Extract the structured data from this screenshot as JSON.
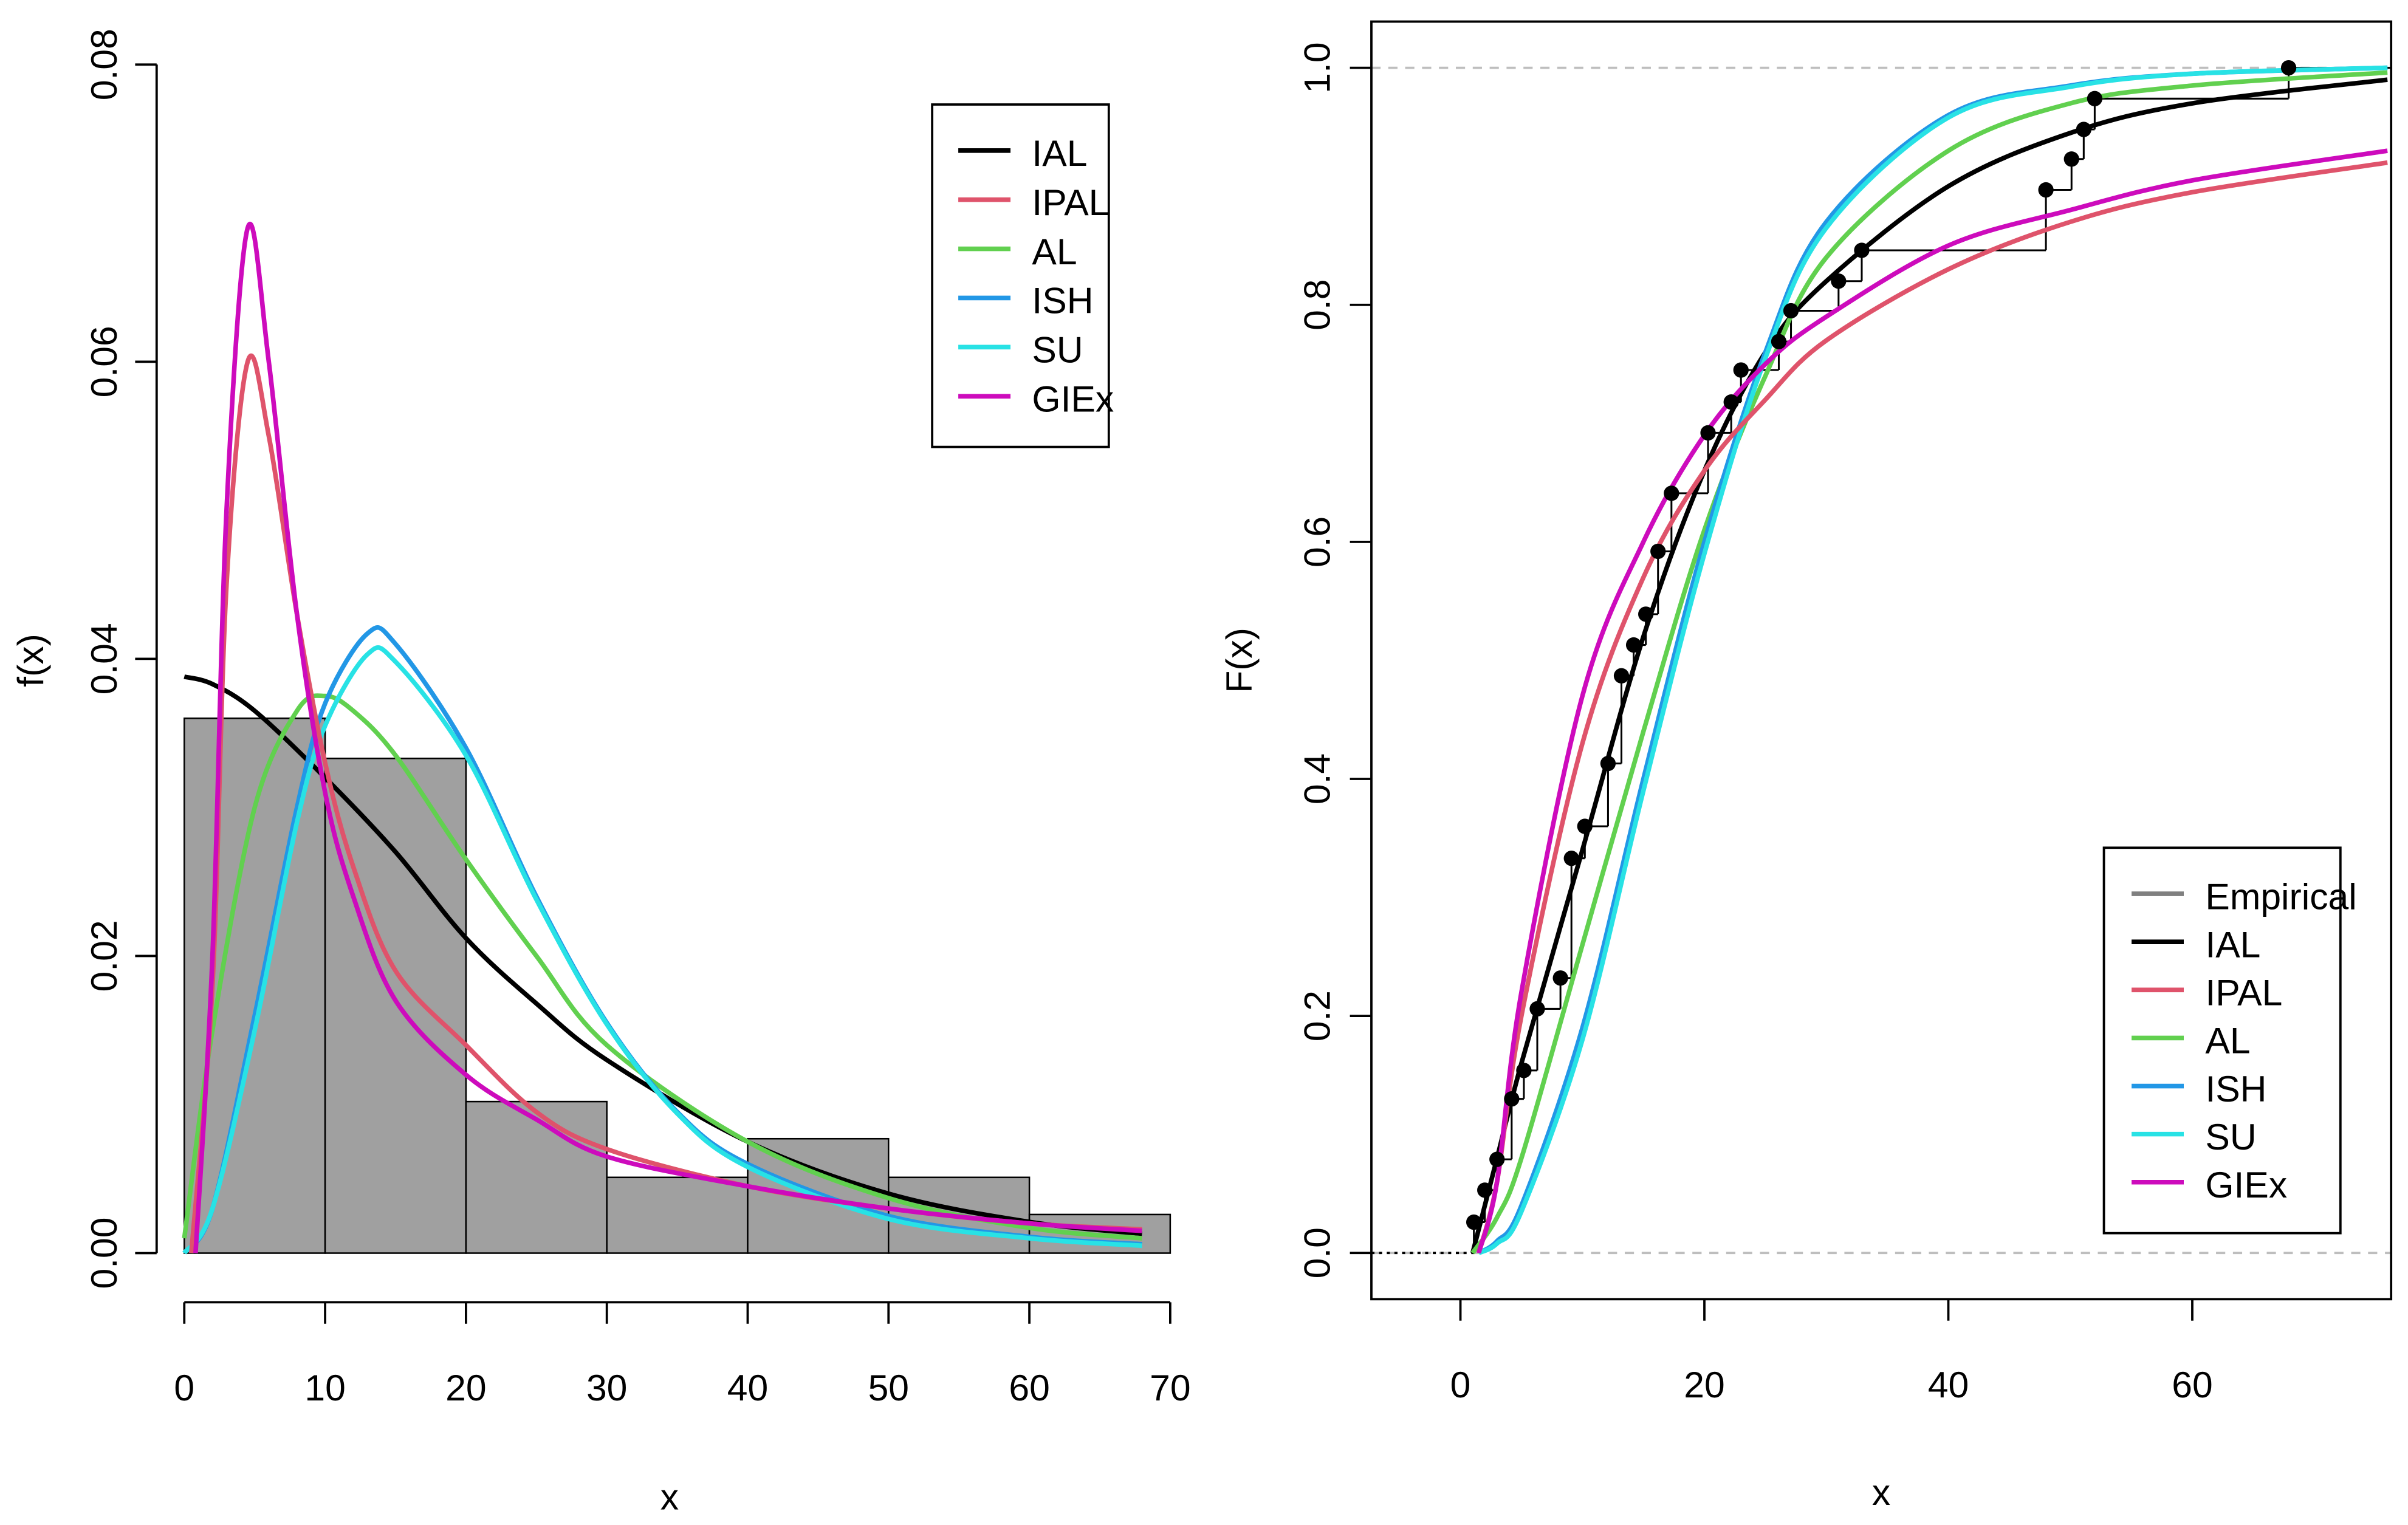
{
  "colors": {
    "IAL": "#000000",
    "IPAL": "#DF536B",
    "AL": "#61D04F",
    "ISH": "#2297E6",
    "SU": "#28E2E5",
    "GIEx": "#CD0BBC",
    "Empirical": "#808080",
    "histogram": "#A0A0A0",
    "reference": "#BEBEBE"
  },
  "chart_data": [
    {
      "type": "bar",
      "subtype": "histogram with fitted densities",
      "xlabel": "x",
      "ylabel": "f(x)",
      "xlim": [
        0,
        70
      ],
      "ylim": [
        0,
        0.08
      ],
      "xticks": [
        "0",
        "10",
        "20",
        "30",
        "40",
        "50",
        "60",
        "70"
      ],
      "yticks": [
        "0.00",
        "0.02",
        "0.04",
        "0.06",
        "0.08"
      ],
      "legend_position": "top-right",
      "grid": false,
      "histogram": {
        "bins": [
          [
            0,
            10
          ],
          [
            10,
            20
          ],
          [
            20,
            30
          ],
          [
            30,
            40
          ],
          [
            40,
            50
          ],
          [
            50,
            60
          ],
          [
            60,
            70
          ]
        ],
        "density": [
          0.036,
          0.0333,
          0.0102,
          0.0051,
          0.0077,
          0.0051,
          0.0026
        ]
      },
      "series": [
        {
          "name": "IAL",
          "x": [
            0,
            2,
            5,
            10,
            15,
            20,
            25,
            30,
            40,
            50,
            60,
            68
          ],
          "y": [
            0.0388,
            0.0383,
            0.0365,
            0.032,
            0.027,
            0.0212,
            0.0168,
            0.013,
            0.0075,
            0.004,
            0.0021,
            0.0013
          ]
        },
        {
          "name": "IPAL",
          "x": [
            0.5,
            2,
            3,
            4.5,
            6,
            8,
            10,
            12,
            15,
            20,
            25,
            30,
            40,
            50,
            60,
            68
          ],
          "y": [
            0,
            0.018,
            0.045,
            0.06,
            0.055,
            0.043,
            0.033,
            0.026,
            0.019,
            0.014,
            0.0095,
            0.007,
            0.0045,
            0.003,
            0.002,
            0.0016
          ]
        },
        {
          "name": "AL",
          "x": [
            0,
            2,
            5,
            8,
            10,
            12,
            15,
            20,
            25,
            30,
            40,
            50,
            60,
            68
          ],
          "y": [
            0.001,
            0.015,
            0.03,
            0.0365,
            0.0375,
            0.0365,
            0.0335,
            0.0265,
            0.02,
            0.014,
            0.0075,
            0.0037,
            0.0017,
            0.001
          ]
        },
        {
          "name": "ISH",
          "x": [
            0,
            2,
            5,
            8,
            10,
            13,
            15,
            20,
            25,
            30,
            35,
            40,
            50,
            60,
            68
          ],
          "y": [
            0,
            0.003,
            0.016,
            0.03,
            0.037,
            0.0417,
            0.041,
            0.034,
            0.024,
            0.0155,
            0.0095,
            0.006,
            0.0025,
            0.0011,
            0.0006
          ]
        },
        {
          "name": "SU",
          "x": [
            0,
            2,
            5,
            8,
            10,
            13,
            15,
            20,
            25,
            30,
            35,
            40,
            50,
            60,
            68
          ],
          "y": [
            0,
            0.003,
            0.015,
            0.029,
            0.0355,
            0.0403,
            0.0398,
            0.0335,
            0.0238,
            0.0154,
            0.0094,
            0.0058,
            0.0023,
            0.001,
            0.0005
          ]
        },
        {
          "name": "GIEx",
          "x": [
            0.8,
            2,
            3,
            4.5,
            6,
            8,
            10,
            12,
            15,
            20,
            25,
            30,
            40,
            50,
            60,
            68
          ],
          "y": [
            0,
            0.02,
            0.05,
            0.069,
            0.06,
            0.043,
            0.031,
            0.024,
            0.017,
            0.012,
            0.009,
            0.0065,
            0.0045,
            0.003,
            0.002,
            0.0015
          ]
        }
      ]
    },
    {
      "type": "line",
      "subtype": "empirical and fitted CDFs",
      "xlabel": "x",
      "ylabel": "F(x)",
      "xlim": [
        -7.3,
        76.3
      ],
      "ylim": [
        -0.039,
        1.039
      ],
      "xticks": [
        "0",
        "20",
        "40",
        "60"
      ],
      "yticks": [
        "0.0",
        "0.2",
        "0.4",
        "0.6",
        "0.8",
        "1.0"
      ],
      "reference_lines": [
        0,
        1
      ],
      "legend_position": "bottom-right",
      "grid": false,
      "empirical": {
        "name": "Empirical",
        "x": [
          1.1,
          2.0,
          3.0,
          4.2,
          5.2,
          6.3,
          8.2,
          9.1,
          10.2,
          12.1,
          13.2,
          14.2,
          15.2,
          16.2,
          17.3,
          20.3,
          22.2,
          23.0,
          26.1,
          27.1,
          31.0,
          32.9,
          48.0,
          50.1,
          51.1,
          52.0,
          67.9
        ],
        "F": [
          0.026,
          0.053,
          0.079,
          0.13,
          0.154,
          0.206,
          0.232,
          0.333,
          0.36,
          0.413,
          0.487,
          0.513,
          0.539,
          0.592,
          0.641,
          0.692,
          0.718,
          0.745,
          0.769,
          0.795,
          0.82,
          0.846,
          0.897,
          0.923,
          0.948,
          0.974,
          1.0
        ]
      },
      "series": [
        {
          "name": "IAL",
          "x": [
            1,
            3,
            5,
            10,
            15,
            20,
            25,
            30,
            40,
            50,
            60,
            76
          ],
          "y": [
            0,
            0.08,
            0.16,
            0.34,
            0.52,
            0.66,
            0.76,
            0.82,
            0.9,
            0.945,
            0.97,
            0.99
          ]
        },
        {
          "name": "IPAL",
          "x": [
            1.5,
            3,
            5,
            10,
            15,
            20,
            25,
            30,
            40,
            50,
            60,
            76
          ],
          "y": [
            0,
            0.06,
            0.2,
            0.43,
            0.57,
            0.66,
            0.72,
            0.77,
            0.83,
            0.87,
            0.895,
            0.92
          ]
        },
        {
          "name": "AL",
          "x": [
            1,
            3,
            5,
            10,
            15,
            20,
            25,
            30,
            40,
            50,
            60,
            76
          ],
          "y": [
            0,
            0.03,
            0.08,
            0.26,
            0.44,
            0.61,
            0.74,
            0.84,
            0.93,
            0.97,
            0.985,
            0.996
          ]
        },
        {
          "name": "ISH",
          "x": [
            1.5,
            3,
            5,
            10,
            15,
            20,
            25,
            30,
            40,
            50,
            60,
            76
          ],
          "y": [
            0,
            0.01,
            0.04,
            0.19,
            0.4,
            0.6,
            0.76,
            0.87,
            0.96,
            0.985,
            0.995,
            1.0
          ]
        },
        {
          "name": "SU",
          "x": [
            1.5,
            3,
            5,
            10,
            15,
            20,
            25,
            30,
            40,
            50,
            60,
            76
          ],
          "y": [
            0,
            0.008,
            0.035,
            0.18,
            0.39,
            0.59,
            0.755,
            0.865,
            0.958,
            0.984,
            0.995,
            1.0
          ]
        },
        {
          "name": "GIEx",
          "x": [
            1.5,
            3,
            5,
            10,
            15,
            20,
            25,
            30,
            40,
            50,
            60,
            76
          ],
          "y": [
            0,
            0.06,
            0.22,
            0.47,
            0.6,
            0.69,
            0.75,
            0.79,
            0.85,
            0.88,
            0.905,
            0.93
          ]
        }
      ]
    }
  ]
}
